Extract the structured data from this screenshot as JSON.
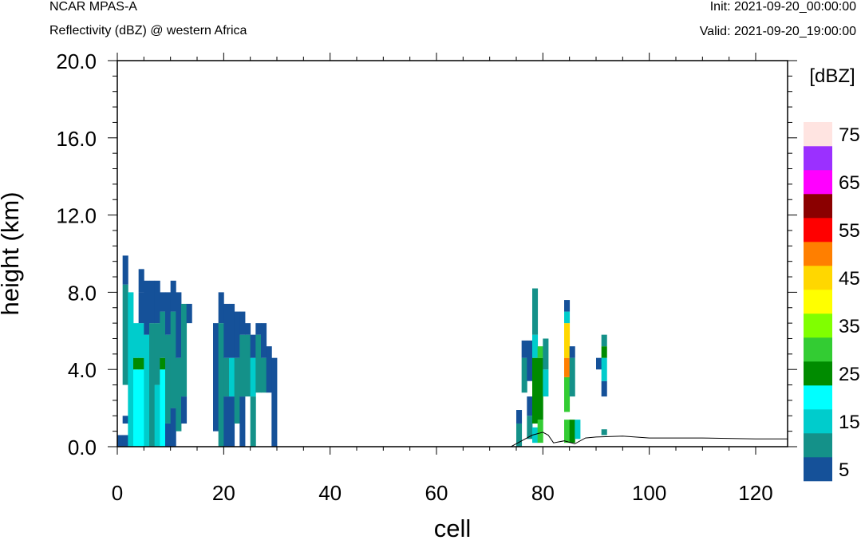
{
  "header": {
    "model": "NCAR MPAS-A",
    "field": "Reflectivity (dBZ) @ western Africa",
    "init": "Init: 2021-09-20_00:00:00",
    "valid": "Valid: 2021-09-20_19:00:00"
  },
  "chart_data": {
    "type": "heatmap",
    "title": "",
    "xlabel": "cell",
    "ylabel": "height (km)",
    "xlim": [
      0,
      126
    ],
    "ylim": [
      0,
      20
    ],
    "x_ticks": [
      "0",
      "20",
      "40",
      "60",
      "80",
      "100",
      "120"
    ],
    "y_ticks": [
      "0.0",
      "4.0",
      "8.0",
      "12.0",
      "16.0",
      "20.0"
    ],
    "grid": false,
    "colorbar": {
      "unit_label": "[dBZ]",
      "tick_labels": [
        "5",
        "15",
        "25",
        "35",
        "45",
        "55",
        "65",
        "75"
      ],
      "levels": [
        5,
        10,
        15,
        20,
        25,
        30,
        35,
        40,
        45,
        50,
        55,
        60,
        65,
        70,
        75,
        80
      ],
      "colors": [
        "#155199",
        "#149189",
        "#00cccc",
        "#00ffff",
        "#008b00",
        "#33cc33",
        "#80ff00",
        "#ffff00",
        "#ffd700",
        "#ff7f00",
        "#ff0000",
        "#8b0000",
        "#ff00ff",
        "#9b30ff",
        "#ffe4e1"
      ]
    },
    "columns": [
      {
        "cell": 0,
        "segments": [
          {
            "bottom": 0.0,
            "top": 0.6,
            "dbz": 7
          }
        ]
      },
      {
        "cell": 1,
        "segments": [
          {
            "bottom": 0.0,
            "top": 0.6,
            "dbz": 7
          },
          {
            "bottom": 1.2,
            "top": 1.6,
            "dbz": 7
          },
          {
            "bottom": 3.2,
            "top": 8.4,
            "dbz": 12
          },
          {
            "bottom": 8.4,
            "top": 9.9,
            "dbz": 7
          }
        ]
      },
      {
        "cell": 2,
        "segments": [
          {
            "bottom": 0.0,
            "top": 8.0,
            "dbz": 17
          }
        ]
      },
      {
        "cell": 3,
        "segments": [
          {
            "bottom": 0.0,
            "top": 4.0,
            "dbz": 22
          },
          {
            "bottom": 4.0,
            "top": 4.6,
            "dbz": 27
          },
          {
            "bottom": 4.6,
            "top": 6.4,
            "dbz": 17
          }
        ]
      },
      {
        "cell": 4,
        "segments": [
          {
            "bottom": 0.0,
            "top": 4.0,
            "dbz": 22
          },
          {
            "bottom": 4.0,
            "top": 4.6,
            "dbz": 27
          },
          {
            "bottom": 4.6,
            "top": 6.4,
            "dbz": 17
          },
          {
            "bottom": 6.4,
            "top": 8.0,
            "dbz": 7
          },
          {
            "bottom": 8.0,
            "top": 9.2,
            "dbz": 7
          }
        ]
      },
      {
        "cell": 5,
        "segments": [
          {
            "bottom": 0.0,
            "top": 5.8,
            "dbz": 17
          },
          {
            "bottom": 5.8,
            "top": 8.6,
            "dbz": 7
          }
        ]
      },
      {
        "cell": 6,
        "segments": [
          {
            "bottom": 0.0,
            "top": 6.4,
            "dbz": 12
          },
          {
            "bottom": 6.4,
            "top": 8.6,
            "dbz": 7
          }
        ]
      },
      {
        "cell": 7,
        "segments": [
          {
            "bottom": 0.0,
            "top": 3.2,
            "dbz": 17
          },
          {
            "bottom": 3.2,
            "top": 6.4,
            "dbz": 12
          },
          {
            "bottom": 6.4,
            "top": 8.6,
            "dbz": 7
          }
        ]
      },
      {
        "cell": 8,
        "segments": [
          {
            "bottom": 0.0,
            "top": 4.0,
            "dbz": 22
          },
          {
            "bottom": 4.0,
            "top": 4.6,
            "dbz": 27
          },
          {
            "bottom": 4.6,
            "top": 7.0,
            "dbz": 12
          },
          {
            "bottom": 7.0,
            "top": 8.0,
            "dbz": 7
          }
        ]
      },
      {
        "cell": 9,
        "segments": [
          {
            "bottom": 0.0,
            "top": 1.2,
            "dbz": 7
          },
          {
            "bottom": 1.2,
            "top": 5.8,
            "dbz": 12
          },
          {
            "bottom": 5.8,
            "top": 8.0,
            "dbz": 7
          }
        ]
      },
      {
        "cell": 10,
        "segments": [
          {
            "bottom": 0.0,
            "top": 2.0,
            "dbz": 7
          },
          {
            "bottom": 2.0,
            "top": 7.0,
            "dbz": 12
          },
          {
            "bottom": 7.0,
            "top": 8.6,
            "dbz": 7
          }
        ]
      },
      {
        "cell": 11,
        "segments": [
          {
            "bottom": 0.8,
            "top": 4.6,
            "dbz": 12
          },
          {
            "bottom": 4.6,
            "top": 8.0,
            "dbz": 7
          }
        ]
      },
      {
        "cell": 12,
        "segments": [
          {
            "bottom": 1.2,
            "top": 2.6,
            "dbz": 7
          },
          {
            "bottom": 2.6,
            "top": 7.4,
            "dbz": 12
          }
        ]
      },
      {
        "cell": 13,
        "segments": [
          {
            "bottom": 6.4,
            "top": 7.4,
            "dbz": 7
          }
        ]
      },
      {
        "cell": 18,
        "segments": [
          {
            "bottom": 0.8,
            "top": 6.4,
            "dbz": 7
          }
        ]
      },
      {
        "cell": 19,
        "segments": [
          {
            "bottom": 0.0,
            "top": 6.4,
            "dbz": 12
          },
          {
            "bottom": 6.4,
            "top": 8.0,
            "dbz": 7
          }
        ]
      },
      {
        "cell": 20,
        "segments": [
          {
            "bottom": 0.0,
            "top": 2.6,
            "dbz": 7
          },
          {
            "bottom": 2.6,
            "top": 4.6,
            "dbz": 12
          },
          {
            "bottom": 4.6,
            "top": 7.4,
            "dbz": 7
          }
        ]
      },
      {
        "cell": 21,
        "segments": [
          {
            "bottom": 0.0,
            "top": 2.6,
            "dbz": 7
          },
          {
            "bottom": 2.6,
            "top": 4.6,
            "dbz": 17
          },
          {
            "bottom": 4.6,
            "top": 7.4,
            "dbz": 7
          }
        ]
      },
      {
        "cell": 22,
        "segments": [
          {
            "bottom": 1.2,
            "top": 4.6,
            "dbz": 12
          },
          {
            "bottom": 4.6,
            "top": 7.0,
            "dbz": 7
          }
        ]
      },
      {
        "cell": 23,
        "segments": [
          {
            "bottom": 0.0,
            "top": 2.6,
            "dbz": 7
          },
          {
            "bottom": 2.6,
            "top": 5.8,
            "dbz": 12
          },
          {
            "bottom": 5.8,
            "top": 7.0,
            "dbz": 7
          }
        ]
      },
      {
        "cell": 24,
        "segments": [
          {
            "bottom": 2.6,
            "top": 5.8,
            "dbz": 12
          },
          {
            "bottom": 5.8,
            "top": 6.4,
            "dbz": 7
          }
        ]
      },
      {
        "cell": 25,
        "segments": [
          {
            "bottom": 0.0,
            "top": 2.6,
            "dbz": 12
          },
          {
            "bottom": 2.6,
            "top": 4.6,
            "dbz": 17
          },
          {
            "bottom": 4.6,
            "top": 5.8,
            "dbz": 7
          }
        ]
      },
      {
        "cell": 26,
        "segments": [
          {
            "bottom": 2.8,
            "top": 5.8,
            "dbz": 12
          },
          {
            "bottom": 5.8,
            "top": 6.4,
            "dbz": 7
          }
        ]
      },
      {
        "cell": 27,
        "segments": [
          {
            "bottom": 2.8,
            "top": 4.6,
            "dbz": 12
          },
          {
            "bottom": 4.6,
            "top": 6.4,
            "dbz": 7
          }
        ]
      },
      {
        "cell": 28,
        "segments": [
          {
            "bottom": 2.8,
            "top": 5.2,
            "dbz": 7
          }
        ]
      },
      {
        "cell": 29,
        "segments": [
          {
            "bottom": 0.0,
            "top": 4.6,
            "dbz": 7
          }
        ]
      },
      {
        "cell": 75,
        "segments": [
          {
            "bottom": 0.0,
            "top": 1.2,
            "dbz": 12
          },
          {
            "bottom": 1.2,
            "top": 1.9,
            "dbz": 7
          }
        ]
      },
      {
        "cell": 76,
        "segments": [
          {
            "bottom": 2.8,
            "top": 4.6,
            "dbz": 12
          },
          {
            "bottom": 4.6,
            "top": 5.5,
            "dbz": 7
          }
        ]
      },
      {
        "cell": 77,
        "segments": [
          {
            "bottom": 0.4,
            "top": 1.6,
            "dbz": 12
          },
          {
            "bottom": 1.6,
            "top": 2.6,
            "dbz": 7
          },
          {
            "bottom": 3.4,
            "top": 5.5,
            "dbz": 7
          }
        ]
      },
      {
        "cell": 78,
        "segments": [
          {
            "bottom": 0.2,
            "top": 1.0,
            "dbz": 17
          },
          {
            "bottom": 1.2,
            "top": 4.6,
            "dbz": 27
          },
          {
            "bottom": 4.6,
            "top": 5.8,
            "dbz": 17
          },
          {
            "bottom": 5.8,
            "top": 8.2,
            "dbz": 12
          }
        ]
      },
      {
        "cell": 79,
        "segments": [
          {
            "bottom": 0.2,
            "top": 1.4,
            "dbz": 32
          },
          {
            "bottom": 1.4,
            "top": 4.6,
            "dbz": 27
          },
          {
            "bottom": 4.6,
            "top": 5.2,
            "dbz": 32
          }
        ]
      },
      {
        "cell": 80,
        "segments": [
          {
            "bottom": 2.6,
            "top": 4.0,
            "dbz": 17
          },
          {
            "bottom": 4.0,
            "top": 5.6,
            "dbz": 12
          }
        ]
      },
      {
        "cell": 84,
        "segments": [
          {
            "bottom": 0.2,
            "top": 1.4,
            "dbz": 32
          },
          {
            "bottom": 1.8,
            "top": 3.6,
            "dbz": 32
          },
          {
            "bottom": 3.6,
            "top": 4.6,
            "dbz": 52
          },
          {
            "bottom": 4.6,
            "top": 6.4,
            "dbz": 47
          },
          {
            "bottom": 6.4,
            "top": 7.0,
            "dbz": 17
          },
          {
            "bottom": 7.0,
            "top": 7.6,
            "dbz": 7
          }
        ]
      },
      {
        "cell": 85,
        "segments": [
          {
            "bottom": 0.2,
            "top": 1.4,
            "dbz": 27
          },
          {
            "bottom": 2.6,
            "top": 4.6,
            "dbz": 12
          },
          {
            "bottom": 4.6,
            "top": 5.2,
            "dbz": 7
          }
        ]
      },
      {
        "cell": 86,
        "segments": [
          {
            "bottom": 0.4,
            "top": 1.4,
            "dbz": 17
          }
        ]
      },
      {
        "cell": 90,
        "segments": [
          {
            "bottom": 4.0,
            "top": 4.6,
            "dbz": 7
          }
        ]
      },
      {
        "cell": 91,
        "segments": [
          {
            "bottom": 2.6,
            "top": 3.4,
            "dbz": 7
          },
          {
            "bottom": 3.4,
            "top": 4.6,
            "dbz": 17
          },
          {
            "bottom": 4.6,
            "top": 5.2,
            "dbz": 27
          },
          {
            "bottom": 5.2,
            "top": 5.8,
            "dbz": 12
          },
          {
            "bottom": 0.6,
            "top": 0.9,
            "dbz": 12
          }
        ]
      }
    ],
    "terrain": [
      [
        0,
        0.0
      ],
      [
        74,
        0.0
      ],
      [
        76,
        0.3
      ],
      [
        78,
        0.6
      ],
      [
        80,
        0.75
      ],
      [
        81,
        0.6
      ],
      [
        82,
        0.2
      ],
      [
        84,
        0.3
      ],
      [
        86,
        0.15
      ],
      [
        88,
        0.45
      ],
      [
        90,
        0.5
      ],
      [
        95,
        0.55
      ],
      [
        100,
        0.45
      ],
      [
        110,
        0.45
      ],
      [
        120,
        0.4
      ],
      [
        126,
        0.4
      ]
    ]
  }
}
